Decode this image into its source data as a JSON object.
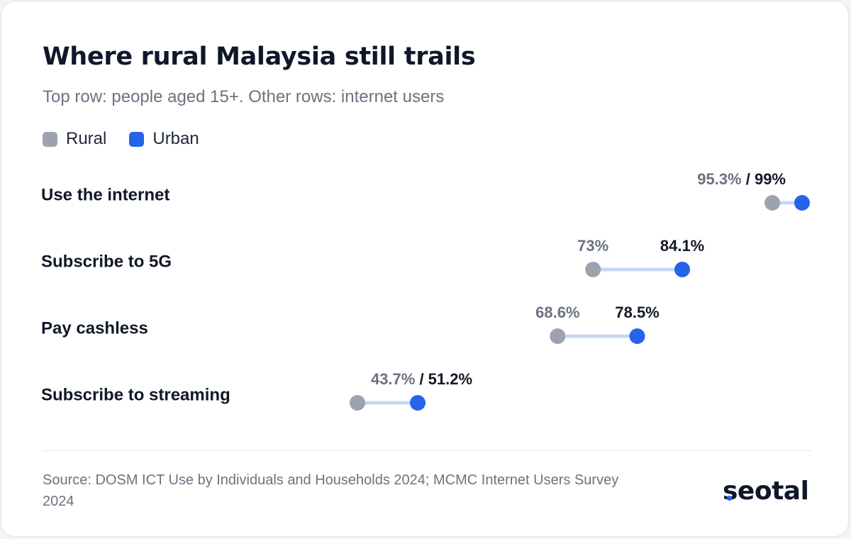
{
  "title": "Where rural Malaysia still trails",
  "subtitle": "Top row: people aged 15+. Other rows: internet users",
  "colors": {
    "rural": "#9ca3af",
    "urban": "#2563eb",
    "connector": "#c7d6f3"
  },
  "chart_data": {
    "type": "dumbbell",
    "xlim": [
      0,
      100
    ],
    "series": [
      {
        "name": "Rural",
        "values": [
          95.3,
          73,
          68.6,
          43.7
        ]
      },
      {
        "name": "Urban",
        "values": [
          99,
          84.1,
          78.5,
          51.2
        ]
      }
    ],
    "categories": [
      "Use the internet",
      "Subscribe to 5G",
      "Pay cashless",
      "Subscribe to streaming"
    ],
    "value_labels": [
      {
        "rural": "95.3%",
        "urban": "99%",
        "combined": true
      },
      {
        "rural": "73%",
        "urban": "84.1%",
        "combined": false
      },
      {
        "rural": "68.6%",
        "urban": "78.5%",
        "combined": false
      },
      {
        "rural": "43.7%",
        "urban": "51.2%",
        "combined": true
      }
    ],
    "legend": [
      "Rural",
      "Urban"
    ]
  },
  "source": "Source: DOSM ICT Use by Individuals and Households 2024; MCMC Internet Users Survey 2024",
  "brand": "seotal"
}
